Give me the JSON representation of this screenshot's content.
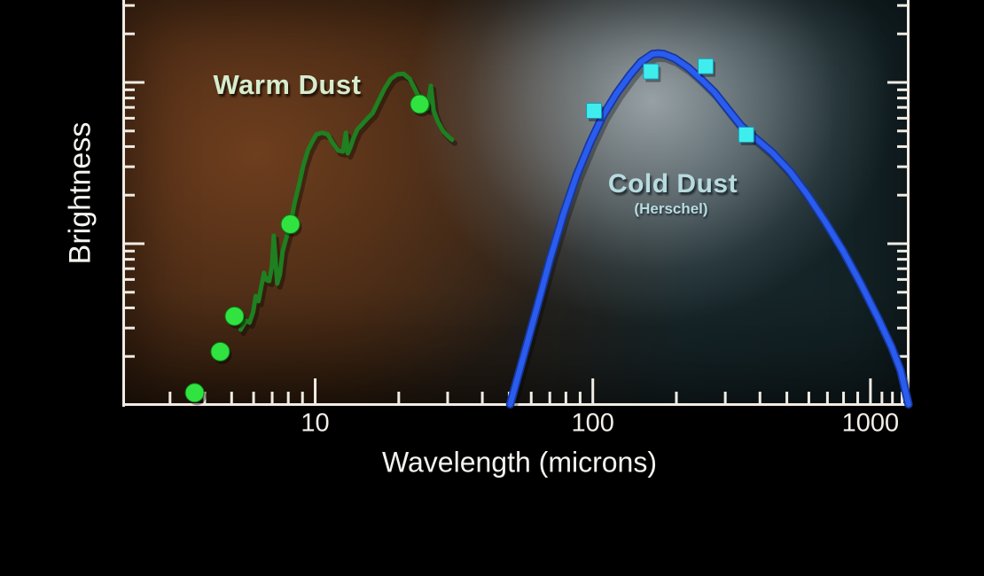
{
  "figure": {
    "background_color": "#000000"
  },
  "chart_data": {
    "type": "line",
    "title": "",
    "xlabel": "Wavelength (microns)",
    "ylabel": "Brightness",
    "x_scale": "log",
    "y_scale": "log",
    "grid": false,
    "x_range_microns": [
      2.02,
      1383
    ],
    "y_range_relative_brightness": [
      1,
      325
    ],
    "axis_color": "#f0ece4",
    "x_major_ticks": [
      {
        "value": 10,
        "label": "10"
      },
      {
        "value": 100,
        "label": "100"
      },
      {
        "value": 1000,
        "label": "1000"
      }
    ],
    "x_minor_ticks": [
      3,
      4,
      5,
      6,
      7,
      8,
      9,
      20,
      30,
      40,
      50,
      60,
      70,
      80,
      90,
      200,
      300,
      400,
      500,
      600,
      700,
      800,
      900,
      1100,
      1200,
      1300
    ],
    "y_major_ticks": [
      10,
      100
    ],
    "y_minor_ticks": [
      2,
      3,
      4,
      5,
      6,
      7,
      8,
      9,
      20,
      30,
      40,
      50,
      60,
      70,
      80,
      90,
      200,
      300
    ],
    "series": [
      {
        "name": "Warm Dust",
        "label_text": "Warm Dust",
        "label_color": "#d6eccd",
        "line_color": "#1e8020",
        "line_shadow": "rgba(0,0,0,0.35)",
        "marker": "circle",
        "marker_color": "#31e341",
        "marker_edge_color": "#0f7a18",
        "line_points": [
          [
            5.39,
            2.93
          ],
          [
            5.63,
            3.33
          ],
          [
            5.8,
            3.24
          ],
          [
            5.98,
            3.78
          ],
          [
            6.11,
            4.74
          ],
          [
            6.25,
            4.4
          ],
          [
            6.39,
            5.38
          ],
          [
            6.54,
            6.59
          ],
          [
            6.68,
            5.95
          ],
          [
            6.83,
            5.87
          ],
          [
            6.99,
            7.28
          ],
          [
            7.09,
            11.2
          ],
          [
            7.19,
            8.05
          ],
          [
            7.3,
            5.66
          ],
          [
            7.46,
            6.43
          ],
          [
            7.63,
            8.93
          ],
          [
            7.85,
            10.7
          ],
          [
            8.14,
            13.2
          ],
          [
            8.44,
            18.1
          ],
          [
            8.75,
            23.3
          ],
          [
            9.07,
            30.8
          ],
          [
            9.41,
            37.8
          ],
          [
            9.76,
            42.9
          ],
          [
            10.1,
            47.5
          ],
          [
            10.6,
            48.8
          ],
          [
            11.1,
            47.5
          ],
          [
            11.6,
            41.8
          ],
          [
            12.1,
            37.8
          ],
          [
            12.6,
            37.3
          ],
          [
            12.9,
            48.8
          ],
          [
            13.1,
            36.3
          ],
          [
            13.4,
            39.8
          ],
          [
            13.7,
            44.6
          ],
          [
            14.2,
            51.2
          ],
          [
            14.8,
            55.3
          ],
          [
            15.4,
            59.7
          ],
          [
            16.1,
            64.4
          ],
          [
            16.9,
            76.7
          ],
          [
            17.8,
            91.7
          ],
          [
            18.7,
            105
          ],
          [
            19.7,
            112
          ],
          [
            20.8,
            113
          ],
          [
            21.9,
            105
          ],
          [
            22.8,
            91.7
          ],
          [
            23.8,
            78.9
          ],
          [
            24.7,
            79.9
          ],
          [
            25.4,
            68.4
          ],
          [
            26.1,
            95.3
          ],
          [
            26.7,
            66.8
          ],
          [
            27.7,
            56.7
          ],
          [
            28.9,
            49.9
          ],
          [
            30.1,
            46.3
          ],
          [
            31.1,
            44.1
          ]
        ],
        "marker_points": [
          [
            3.68,
            1.19
          ],
          [
            4.55,
            2.14
          ],
          [
            5.12,
            3.55
          ],
          [
            8.14,
            13.2
          ],
          [
            23.8,
            73.3
          ]
        ]
      },
      {
        "name": "Cold Dust (Herschel)",
        "label_text": "Cold Dust",
        "sublabel_text": "(Herschel)",
        "label_color": "#b7dbdf",
        "line_color": "#2b5cf0",
        "line_edge_color": "#16389f",
        "line_shadow": "rgba(0,0,0,0.30)",
        "marker": "square",
        "marker_color": "#3feded",
        "marker_edge_color": "#1899b8",
        "line_points": [
          [
            50.4,
            1.01
          ],
          [
            56.3,
            2.01
          ],
          [
            62.9,
            4.02
          ],
          [
            70.2,
            8.06
          ],
          [
            78.5,
            15.4
          ],
          [
            87.6,
            26.8
          ],
          [
            97.8,
            42.3
          ],
          [
            109,
            62.6
          ],
          [
            122,
            85.9
          ],
          [
            136,
            111
          ],
          [
            149,
            134
          ],
          [
            164,
            150
          ],
          [
            172,
            151
          ],
          [
            180,
            150
          ],
          [
            197,
            141
          ],
          [
            220,
            124
          ],
          [
            245,
            105
          ],
          [
            274,
            87.0
          ],
          [
            306,
            68.4
          ],
          [
            342,
            53.8
          ],
          [
            382,
            45.6
          ],
          [
            442,
            36.8
          ],
          [
            512,
            28.2
          ],
          [
            593,
            20.1
          ],
          [
            687,
            13.7
          ],
          [
            796,
            9.04
          ],
          [
            922,
            5.66
          ],
          [
            1069,
            3.41
          ],
          [
            1193,
            2.28
          ],
          [
            1284,
            1.64
          ],
          [
            1372,
            1.01
          ]
        ],
        "marker_points": [
          [
            101,
            66.7
          ],
          [
            162,
            117
          ],
          [
            255,
            126
          ],
          [
            357,
            47.4
          ]
        ]
      }
    ]
  }
}
